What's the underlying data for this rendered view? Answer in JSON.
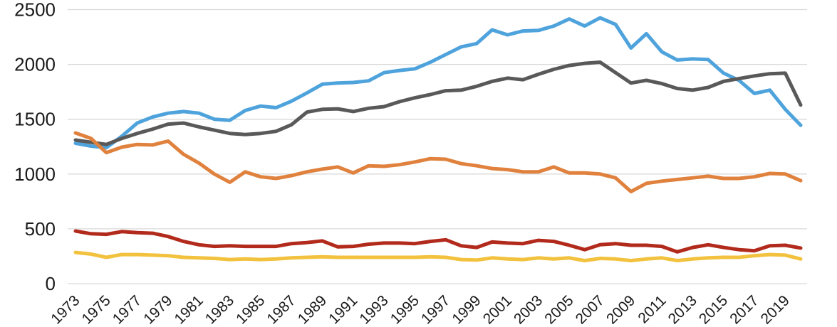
{
  "chart_data": {
    "type": "line",
    "title": "",
    "xlabel": "",
    "ylabel": "",
    "ylim": [
      0,
      2500
    ],
    "y_ticks": [
      0,
      500,
      1000,
      1500,
      2000,
      2500
    ],
    "y_tick_labels": [
      "0",
      "500",
      "1000",
      "1500",
      "2000",
      "2500"
    ],
    "grid": "horizontal",
    "legend_position": "none",
    "gridline_color": "#d9d9d9",
    "tick_label_color": "#1a1a1a",
    "background_color": "#ffffff",
    "years": [
      1973,
      1974,
      1975,
      1976,
      1977,
      1978,
      1979,
      1980,
      1981,
      1982,
      1983,
      1984,
      1985,
      1986,
      1987,
      1988,
      1989,
      1990,
      1991,
      1992,
      1993,
      1994,
      1995,
      1996,
      1997,
      1998,
      1999,
      2000,
      2001,
      2002,
      2003,
      2004,
      2005,
      2006,
      2007,
      2008,
      2009,
      2010,
      2011,
      2012,
      2013,
      2014,
      2015,
      2016,
      2017,
      2018,
      2019,
      2020
    ],
    "x_tick_labels": [
      "1973",
      "1975",
      "1977",
      "1979",
      "1981",
      "1983",
      "1985",
      "1987",
      "1989",
      "1991",
      "1993",
      "1995",
      "1997",
      "1999",
      "2001",
      "2003",
      "2005",
      "2007",
      "2009",
      "2011",
      "2013",
      "2015",
      "2017",
      "2019"
    ],
    "series": [
      {
        "name": "light-blue",
        "color": "#4fa3dc",
        "values": [
          1280,
          1255,
          1240,
          1345,
          1465,
          1520,
          1555,
          1570,
          1555,
          1500,
          1490,
          1580,
          1620,
          1605,
          1665,
          1740,
          1820,
          1830,
          1835,
          1850,
          1925,
          1945,
          1960,
          2020,
          2090,
          2160,
          2190,
          2315,
          2270,
          2305,
          2310,
          2350,
          2415,
          2350,
          2425,
          2365,
          2150,
          2280,
          2115,
          2040,
          2050,
          2045,
          1920,
          1855,
          1735,
          1765,
          1590,
          1445
        ]
      },
      {
        "name": "dark-gray",
        "color": "#595959",
        "values": [
          1310,
          1290,
          1270,
          1325,
          1370,
          1410,
          1455,
          1465,
          1430,
          1400,
          1370,
          1360,
          1370,
          1390,
          1450,
          1565,
          1590,
          1595,
          1570,
          1600,
          1615,
          1660,
          1695,
          1725,
          1760,
          1765,
          1800,
          1845,
          1875,
          1860,
          1910,
          1955,
          1990,
          2010,
          2020,
          1925,
          1830,
          1855,
          1825,
          1780,
          1765,
          1790,
          1845,
          1870,
          1895,
          1915,
          1920,
          1630
        ]
      },
      {
        "name": "orange",
        "color": "#e0813d",
        "values": [
          1375,
          1325,
          1195,
          1245,
          1270,
          1265,
          1300,
          1180,
          1100,
          1000,
          925,
          1020,
          975,
          960,
          985,
          1020,
          1045,
          1065,
          1010,
          1075,
          1070,
          1085,
          1110,
          1140,
          1135,
          1095,
          1075,
          1050,
          1040,
          1020,
          1020,
          1065,
          1010,
          1010,
          1000,
          965,
          840,
          915,
          935,
          950,
          965,
          980,
          960,
          960,
          975,
          1005,
          1000,
          940
        ]
      },
      {
        "name": "dark-red",
        "color": "#b22a1b",
        "values": [
          480,
          455,
          450,
          475,
          465,
          460,
          430,
          385,
          355,
          340,
          345,
          340,
          340,
          340,
          365,
          375,
          390,
          335,
          340,
          360,
          370,
          370,
          365,
          385,
          400,
          345,
          330,
          380,
          370,
          365,
          395,
          385,
          350,
          310,
          355,
          365,
          350,
          350,
          340,
          290,
          330,
          355,
          330,
          310,
          300,
          345,
          350,
          325
        ]
      },
      {
        "name": "yellow",
        "color": "#f2c23e",
        "values": [
          285,
          270,
          240,
          265,
          265,
          260,
          255,
          240,
          235,
          230,
          220,
          225,
          220,
          225,
          235,
          240,
          245,
          240,
          240,
          240,
          240,
          240,
          240,
          245,
          240,
          220,
          215,
          235,
          225,
          220,
          235,
          225,
          235,
          210,
          230,
          225,
          210,
          225,
          235,
          210,
          225,
          235,
          240,
          240,
          255,
          265,
          260,
          225
        ]
      }
    ]
  }
}
